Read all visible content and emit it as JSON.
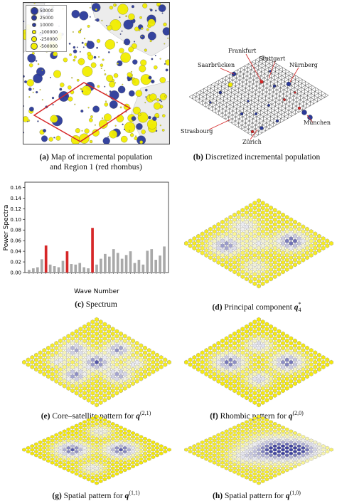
{
  "panels": {
    "a": {
      "letter": "(a)",
      "line1": "Map of incremental population",
      "line2": "and Region 1 (red rhombus)"
    },
    "b": {
      "letter": "(b)",
      "text": "Discretized incremental population"
    },
    "c": {
      "letter": "(c)",
      "text": "Spectrum"
    },
    "d": {
      "letter": "(d)",
      "text": "Principal component",
      "math": "q",
      "sub": "4",
      "sup": "*"
    },
    "e": {
      "letter": "(e)",
      "text": "Core–satellite pattern for",
      "math": "q",
      "sup": "(2,1)"
    },
    "f": {
      "letter": "(f)",
      "text": "Rhombic pattern for",
      "math": "q",
      "sup": "(2,0)"
    },
    "g": {
      "letter": "(g)",
      "text": "Spatial pattern for",
      "math": "q",
      "sup": "(1,1)"
    },
    "h": {
      "letter": "(h)",
      "text": "Spatial pattern for",
      "math": "q",
      "sup": "(1,0)"
    }
  },
  "legend": {
    "items": [
      {
        "label": "50000",
        "size": 9,
        "color": "#2b3a9a"
      },
      {
        "label": "25000",
        "size": 6.5,
        "color": "#2b3a9a"
      },
      {
        "label": "10000",
        "size": 4,
        "color": "#2b3a9a"
      },
      {
        "label": "-100000",
        "size": 3.5,
        "color": "#f2ee00"
      },
      {
        "label": "-250000",
        "size": 5.5,
        "color": "#f2ee00"
      },
      {
        "label": "-500000",
        "size": 8,
        "color": "#f2ee00"
      }
    ]
  },
  "cities": {
    "frankfurt": "Frankfurt",
    "saarbrucken": "Saarbrücken",
    "stuttgart": "Stuttgart",
    "nurnberg": "Nürnberg",
    "munchen": "München",
    "strasbourg": "Strasbourg",
    "zurich": "Zürich"
  },
  "colors": {
    "positive": "#2b3a9a",
    "negative": "#f2ee00",
    "highlight": "#d62728",
    "bar": "#a9a9a9"
  },
  "chart_data": {
    "type": "bar",
    "title": "",
    "xlabel": "Wave Number",
    "ylabel": "Power Spectra",
    "ylim": [
      0,
      0.17
    ],
    "yticks": [
      0.0,
      0.02,
      0.04,
      0.06,
      0.08,
      0.1,
      0.12,
      0.14,
      0.16
    ],
    "ytick_labels": [
      "0.00",
      "0.02",
      "0.04",
      "0.06",
      "0.08",
      "0.10",
      "0.12",
      "0.14",
      "0.16"
    ],
    "highlight_indices": [
      4,
      9,
      15
    ],
    "values": [
      0.005,
      0.008,
      0.01,
      0.025,
      0.051,
      0.015,
      0.012,
      0.01,
      0.022,
      0.04,
      0.016,
      0.015,
      0.018,
      0.01,
      0.008,
      0.084,
      0.015,
      0.026,
      0.035,
      0.03,
      0.044,
      0.037,
      0.026,
      0.033,
      0.04,
      0.018,
      0.024,
      0.015,
      0.041,
      0.044,
      0.024,
      0.032,
      0.049
    ]
  }
}
